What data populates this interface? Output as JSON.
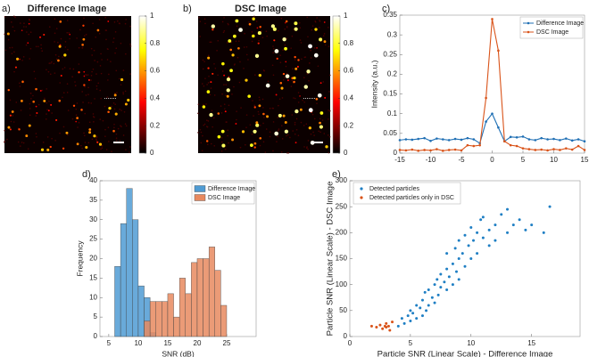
{
  "chart_data": [
    {
      "type": "image",
      "panel_label": "a)",
      "title": "Difference Image",
      "clim": [
        0,
        1
      ],
      "cticks": [
        0,
        0.2,
        0.4,
        0.6,
        0.8,
        1
      ]
    },
    {
      "type": "image",
      "panel_label": "b)",
      "title": "DSC Image",
      "clim": [
        0,
        1
      ],
      "cticks": [
        0,
        0.2,
        0.4,
        0.6,
        0.8,
        1
      ]
    },
    {
      "type": "line",
      "panel_label": "c)",
      "ylabel": "Intensity (a.u.)",
      "legend": "upper right",
      "x": [
        -15,
        -14,
        -13,
        -12,
        -11,
        -10,
        -9,
        -8,
        -7,
        -6,
        -5,
        -4,
        -3,
        -2,
        -1,
        0,
        1,
        2,
        3,
        4,
        5,
        6,
        7,
        8,
        9,
        10,
        11,
        12,
        13,
        14,
        15
      ],
      "xlim": [
        -15,
        15
      ],
      "xticks": [
        -15,
        -10,
        -5,
        0,
        5,
        10,
        15
      ],
      "ylim": [
        0,
        0.35
      ],
      "yticks": [
        0,
        0.05,
        0.1,
        0.15,
        0.2,
        0.25,
        0.3,
        0.35
      ],
      "series": [
        {
          "name": "Difference Image",
          "color": "#1f6fb4",
          "values": [
            0.033,
            0.035,
            0.034,
            0.036,
            0.038,
            0.031,
            0.037,
            0.035,
            0.033,
            0.036,
            0.034,
            0.038,
            0.035,
            0.025,
            0.08,
            0.1,
            0.065,
            0.03,
            0.041,
            0.04,
            0.042,
            0.035,
            0.033,
            0.038,
            0.035,
            0.036,
            0.033,
            0.037,
            0.032,
            0.035,
            0.03
          ]
        },
        {
          "name": "DSC Image",
          "color": "#d95319",
          "values": [
            0.008,
            0.007,
            0.009,
            0.006,
            0.008,
            0.007,
            0.01,
            0.006,
            0.008,
            0.009,
            0.007,
            0.02,
            0.018,
            0.02,
            0.14,
            0.34,
            0.26,
            0.03,
            0.02,
            0.018,
            0.012,
            0.01,
            0.008,
            0.009,
            0.007,
            0.01,
            0.008,
            0.012,
            0.009,
            0.018,
            0.008
          ]
        }
      ]
    },
    {
      "type": "histogram",
      "panel_label": "d)",
      "xlabel": "SNR (dB)",
      "ylabel": "Frequency",
      "legend": "upper right",
      "xlim": [
        3.5,
        30
      ],
      "xticks": [
        5,
        10,
        15,
        20,
        25
      ],
      "ylim": [
        0,
        40
      ],
      "yticks": [
        0,
        5,
        10,
        15,
        20,
        25,
        30,
        35,
        40
      ],
      "series": [
        {
          "name": "Difference Image",
          "color": "#4f9bd3",
          "bins": [
            6,
            7,
            8,
            9,
            10,
            11,
            12,
            13
          ],
          "values": [
            18,
            29,
            38,
            30,
            13,
            10,
            1
          ]
        },
        {
          "name": "DSC Image",
          "color": "#e8895f",
          "bins": [
            11,
            12,
            13,
            14,
            15,
            16,
            17,
            18,
            19,
            20,
            21,
            22,
            23,
            24,
            25
          ],
          "values": [
            4,
            9,
            9,
            9,
            11,
            5,
            15,
            11,
            19,
            20,
            20,
            23,
            17,
            8
          ]
        }
      ]
    },
    {
      "type": "scatter",
      "panel_label": "e)",
      "xlabel": "Particle SNR (Linear Scale) - Difference Image",
      "ylabel": "Particle SNR (Linear Scale) - DSC Image",
      "legend": "upper left",
      "xlim": [
        0,
        19
      ],
      "xticks": [
        0,
        5,
        10,
        15
      ],
      "ylim": [
        0,
        300
      ],
      "yticks": [
        0,
        50,
        100,
        150,
        200,
        250,
        300
      ],
      "series": [
        {
          "name": "Detected particles",
          "color": "#1f7fc4",
          "x": [
            4,
            4.3,
            4.5,
            4.8,
            5,
            5,
            5.2,
            5.5,
            5.5,
            5.8,
            6,
            6,
            6.2,
            6.3,
            6.5,
            6.5,
            6.8,
            7,
            7,
            7.2,
            7.3,
            7.5,
            7.5,
            7.8,
            8,
            8,
            8,
            8.2,
            8.5,
            8.5,
            8.7,
            8.8,
            9,
            9,
            9,
            9.3,
            9.5,
            9.5,
            9.8,
            10,
            10,
            10.2,
            10.5,
            10.5,
            10.8,
            11,
            11,
            11.5,
            11.5,
            12,
            12,
            12.5,
            13,
            13,
            13.5,
            14,
            14.5,
            15,
            16,
            16.5
          ],
          "y": [
            20,
            35,
            25,
            40,
            30,
            50,
            45,
            60,
            35,
            55,
            70,
            40,
            85,
            50,
            90,
            60,
            75,
            100,
            65,
            110,
            80,
            95,
            120,
            105,
            130,
            90,
            160,
            115,
            140,
            100,
            170,
            125,
            150,
            185,
            110,
            160,
            195,
            135,
            175,
            210,
            150,
            185,
            200,
            160,
            225,
            190,
            230,
            205,
            175,
            215,
            185,
            235,
            200,
            245,
            215,
            225,
            205,
            215,
            200,
            250
          ]
        },
        {
          "name": "Detected particles only in DSC",
          "color": "#d95319",
          "x": [
            1.8,
            2.2,
            2.5,
            2.7,
            3,
            3,
            3.2,
            3.3,
            3.5,
            2.9
          ],
          "y": [
            20,
            18,
            22,
            15,
            25,
            18,
            20,
            12,
            28,
            20
          ]
        }
      ]
    }
  ]
}
